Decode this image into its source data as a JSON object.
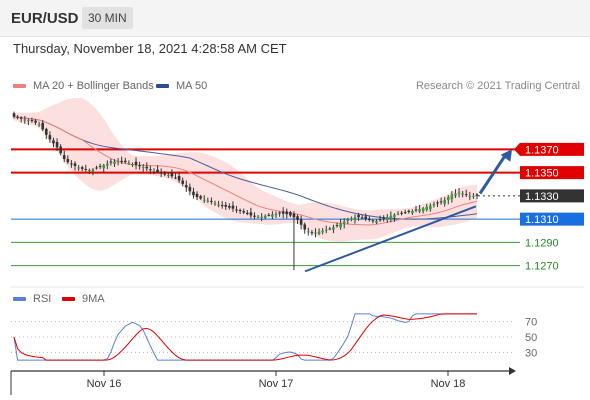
{
  "header": {
    "symbol": "EUR/USD",
    "timeframe": "30 MIN"
  },
  "timestamp": "Thursday, November 18, 2021 4:28:58 AM CET",
  "legend": {
    "ma20": {
      "label": "MA 20 + Bollinger Bands",
      "color": "#f08080"
    },
    "ma50": {
      "label": "MA 50",
      "color": "#2f4f8f"
    },
    "rsi": {
      "label": "RSI",
      "color": "#5b7fd6"
    },
    "rsi_ma": {
      "label": "9MA",
      "color": "#e00000"
    }
  },
  "credit": "Research © 2021 Trading Central",
  "chart_data": [
    {
      "type": "candlestick",
      "ylim": [
        1.1255,
        1.1415
      ],
      "x_ticks": [
        "Nov 16",
        "Nov 17",
        "Nov 18"
      ],
      "levels": [
        {
          "value": 1.137,
          "label": "1.1370",
          "kind": "resistance"
        },
        {
          "value": 1.135,
          "label": "1.1350",
          "kind": "resistance"
        },
        {
          "value": 1.133,
          "label": "1.1330",
          "kind": "last"
        },
        {
          "value": 1.131,
          "label": "1.1310",
          "kind": "pivot"
        },
        {
          "value": 1.129,
          "label": "1.1290",
          "kind": "support"
        },
        {
          "value": 1.127,
          "label": "1.1270",
          "kind": "support"
        }
      ],
      "last_price": 1.133,
      "close_path": [
        1.1398,
        1.1396,
        1.1395,
        1.1391,
        1.138,
        1.1372,
        1.136,
        1.1356,
        1.1353,
        1.1352,
        1.1355,
        1.1358,
        1.136,
        1.1359,
        1.1357,
        1.1355,
        1.1352,
        1.135,
        1.1348,
        1.1345,
        1.1338,
        1.133,
        1.1327,
        1.1325,
        1.1322,
        1.132,
        1.1318,
        1.1315,
        1.1312,
        1.1312,
        1.1314,
        1.1315,
        1.1314,
        1.131,
        1.13,
        1.1298,
        1.13,
        1.1302,
        1.1306,
        1.131,
        1.1312,
        1.131,
        1.1308,
        1.131,
        1.1313,
        1.1315,
        1.1316,
        1.1318,
        1.132,
        1.1323,
        1.1325,
        1.1331,
        1.1333,
        1.133,
        1.133
      ],
      "trendline": {
        "from": 1.1265,
        "to": 1.1321
      },
      "projection": {
        "from": 1.1332,
        "to": 1.137
      }
    },
    {
      "type": "line",
      "title": "RSI",
      "ylim": [
        15,
        85
      ],
      "y_ticks": [
        70,
        50,
        30
      ]
    }
  ]
}
